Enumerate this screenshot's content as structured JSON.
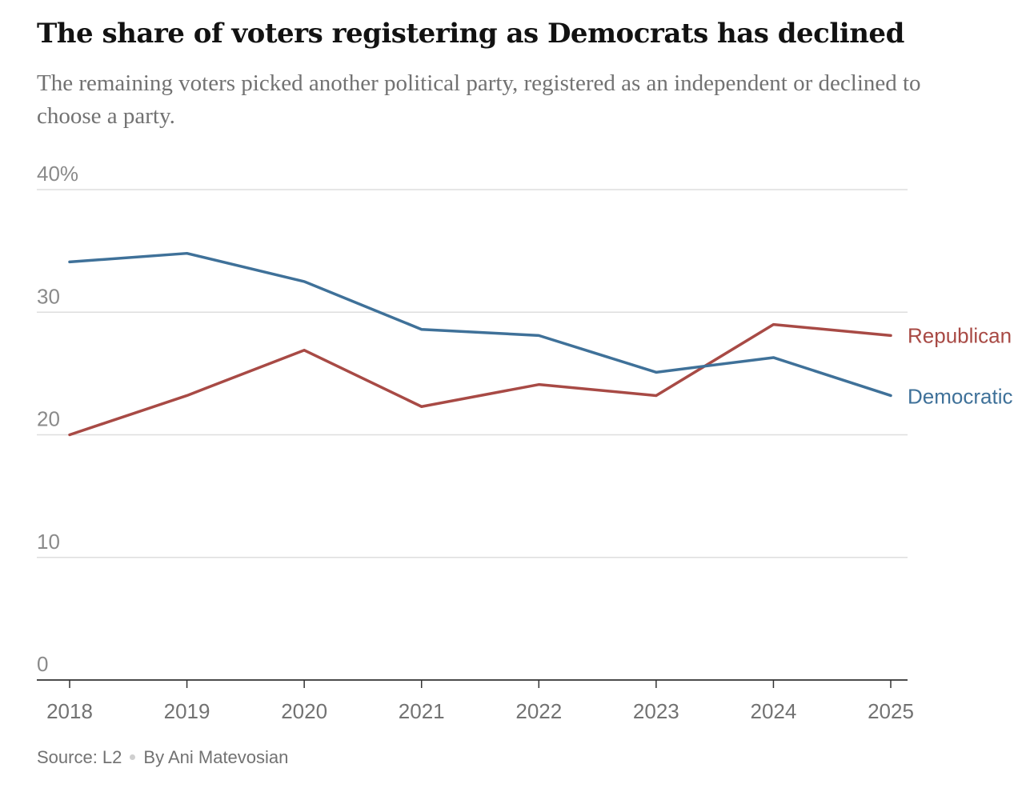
{
  "title": "The share of voters registering as Democrats has declined",
  "subtitle": "The remaining voters picked another political party, registered as an independent or declined to choose a party.",
  "footer": {
    "source": "Source: L2",
    "byline": "By Ani Matevosian"
  },
  "chart_data": {
    "type": "line",
    "x": [
      "2018",
      "2019",
      "2020",
      "2021",
      "2022",
      "2023",
      "2024",
      "2025"
    ],
    "series": [
      {
        "name": "Republican",
        "color": "#a84a45",
        "values": [
          20.0,
          23.2,
          26.9,
          22.3,
          24.1,
          23.2,
          29.0,
          28.1
        ]
      },
      {
        "name": "Democratic",
        "color": "#3f7199",
        "values": [
          34.1,
          34.8,
          32.5,
          28.6,
          28.1,
          25.1,
          26.3,
          23.2
        ]
      }
    ],
    "ylim": [
      0,
      40
    ],
    "yticks": [
      0,
      10,
      20,
      30,
      40
    ],
    "ytick_labels": [
      "0",
      "10",
      "20",
      "30",
      "40%"
    ],
    "xlabel": "",
    "ylabel": "",
    "grid": true,
    "legend": "direct labels at line ends"
  }
}
